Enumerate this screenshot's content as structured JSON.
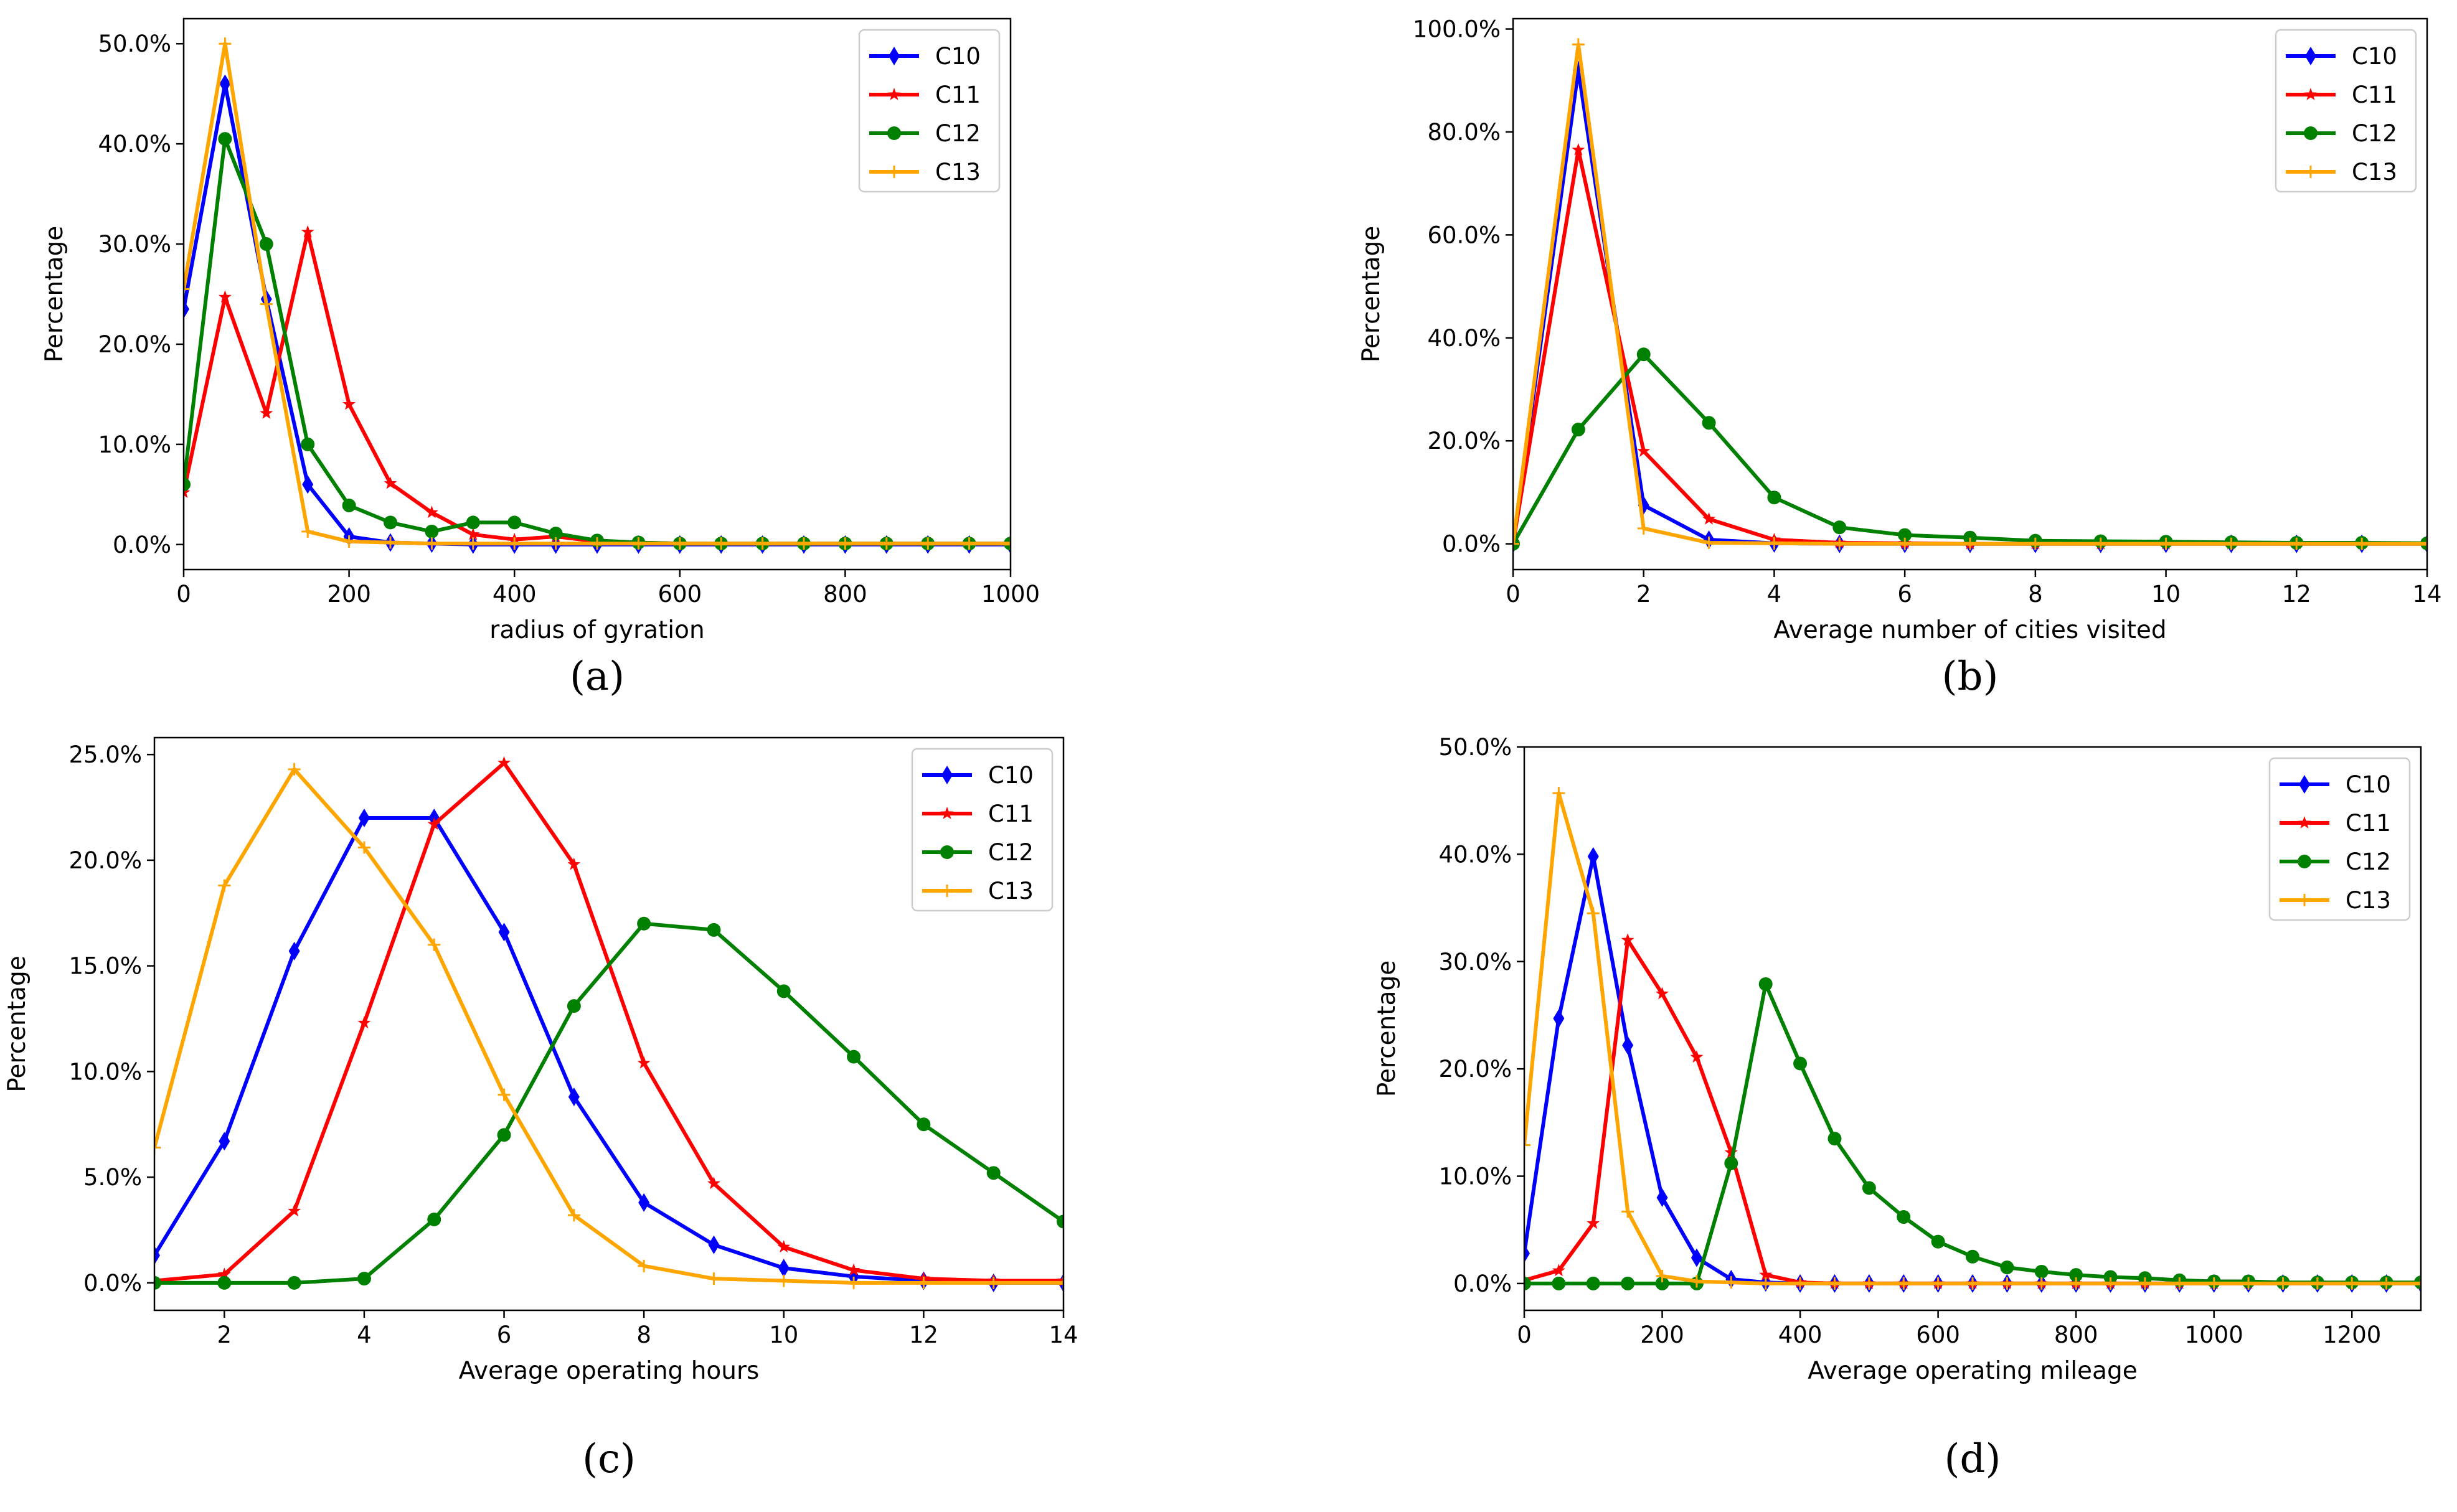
{
  "figure": {
    "panel_labels": [
      "(a)",
      "(b)",
      "(c)",
      "(d)"
    ]
  },
  "chart_data": [
    {
      "type": "line",
      "panel": "(a)",
      "title": "",
      "xlabel": "radius of gyration",
      "ylabel": "Percentage",
      "xlim": [
        0,
        1000
      ],
      "ylim": [
        -2.5,
        52.5
      ],
      "xticks": [
        0,
        200,
        400,
        600,
        800,
        1000
      ],
      "xtick_labels": [
        "0",
        "200",
        "400",
        "600",
        "800",
        "1000"
      ],
      "yticks": [
        0,
        10,
        20,
        30,
        40,
        50
      ],
      "ytick_labels": [
        "0.0%",
        "10.0%",
        "20.0%",
        "30.0%",
        "40.0%",
        "50.0%"
      ],
      "legend": "top-right",
      "grid": false,
      "series": [
        {
          "name": "C10",
          "color": "#0000ff",
          "marker": "diamond",
          "x": [
            0,
            50,
            100,
            150,
            200,
            250,
            300,
            350,
            400,
            450,
            500,
            550,
            600,
            650,
            700,
            750,
            800,
            850,
            900,
            950,
            1000
          ],
          "y": [
            23.5,
            46,
            24.5,
            6,
            0.8,
            0.2,
            0.1,
            0,
            0,
            0,
            0,
            0,
            0,
            0,
            0,
            0,
            0,
            0,
            0,
            0,
            0
          ]
        },
        {
          "name": "C11",
          "color": "#ff0000",
          "marker": "star",
          "x": [
            0,
            50,
            100,
            150,
            200,
            250,
            300,
            350,
            400,
            450,
            500,
            550,
            600,
            650,
            700,
            750,
            800,
            850,
            900,
            950,
            1000
          ],
          "y": [
            5.2,
            24.7,
            13.1,
            31.2,
            14,
            6.1,
            3.2,
            1,
            0.5,
            0.8,
            0.3,
            0.2,
            0.1,
            0.1,
            0.1,
            0.1,
            0.1,
            0.1,
            0.1,
            0.1,
            0.1
          ]
        },
        {
          "name": "C12",
          "color": "#008000",
          "marker": "circle",
          "x": [
            0,
            50,
            100,
            150,
            200,
            250,
            300,
            350,
            400,
            450,
            500,
            550,
            600,
            650,
            700,
            750,
            800,
            850,
            900,
            950,
            1000
          ],
          "y": [
            6,
            40.5,
            30,
            10,
            3.9,
            2.2,
            1.3,
            2.2,
            2.2,
            1.1,
            0.4,
            0.2,
            0.1,
            0.1,
            0.1,
            0.1,
            0.1,
            0.1,
            0.1,
            0.1,
            0.1
          ]
        },
        {
          "name": "C13",
          "color": "#ffa500",
          "marker": "plus",
          "x": [
            0,
            50,
            100,
            150,
            200,
            250,
            300,
            350,
            400,
            450,
            500,
            550,
            600,
            650,
            700,
            750,
            800,
            850,
            900,
            950,
            1000
          ],
          "y": [
            25.5,
            50,
            24,
            1.3,
            0.3,
            0.2,
            0.1,
            0.1,
            0.1,
            0.1,
            0.1,
            0.1,
            0.1,
            0.1,
            0.1,
            0.1,
            0.1,
            0.1,
            0.1,
            0.1,
            0.1
          ]
        }
      ]
    },
    {
      "type": "line",
      "panel": "(b)",
      "title": "",
      "xlabel": "Average number of cities visited",
      "ylabel": "Percentage",
      "xlim": [
        0,
        14
      ],
      "ylim": [
        -5,
        102
      ],
      "xticks": [
        0,
        2,
        4,
        6,
        8,
        10,
        12,
        14
      ],
      "xtick_labels": [
        "0",
        "2",
        "4",
        "6",
        "8",
        "10",
        "12",
        "14"
      ],
      "yticks": [
        0,
        20,
        40,
        60,
        80,
        100
      ],
      "ytick_labels": [
        "0.0%",
        "20.0%",
        "40.0%",
        "60.0%",
        "80.0%",
        "100.0%"
      ],
      "legend": "top-right",
      "grid": false,
      "series": [
        {
          "name": "C10",
          "color": "#0000ff",
          "marker": "diamond",
          "x": [
            0,
            1,
            2,
            3,
            4,
            5,
            6,
            7,
            8,
            9,
            10,
            11,
            12,
            13,
            14
          ],
          "y": [
            0,
            92,
            7.5,
            0.8,
            0.1,
            0,
            0,
            0,
            0,
            0,
            0,
            0,
            0,
            0,
            0
          ]
        },
        {
          "name": "C11",
          "color": "#ff0000",
          "marker": "star",
          "x": [
            0,
            1,
            2,
            3,
            4,
            5,
            6,
            7,
            8,
            9,
            10,
            11,
            12,
            13,
            14
          ],
          "y": [
            0,
            76.5,
            18,
            4.8,
            0.8,
            0.2,
            0.1,
            0,
            0,
            0,
            0,
            0,
            0,
            0,
            0
          ]
        },
        {
          "name": "C12",
          "color": "#008000",
          "marker": "circle",
          "x": [
            0,
            1,
            2,
            3,
            4,
            5,
            6,
            7,
            8,
            9,
            10,
            11,
            12,
            13,
            14
          ],
          "y": [
            0,
            22.2,
            36.8,
            23.5,
            9,
            3.2,
            1.7,
            1.2,
            0.6,
            0.5,
            0.4,
            0.3,
            0.2,
            0.2,
            0.1
          ]
        },
        {
          "name": "C13",
          "color": "#ffa500",
          "marker": "plus",
          "x": [
            0,
            1,
            2,
            3,
            4,
            5,
            6,
            7,
            8,
            9,
            10,
            11,
            12,
            13,
            14
          ],
          "y": [
            0,
            97,
            3,
            0.2,
            0.1,
            0,
            0,
            0,
            0,
            0,
            0,
            0,
            0,
            0,
            0
          ]
        }
      ]
    },
    {
      "type": "line",
      "panel": "(c)",
      "title": "",
      "xlabel": "Average operating hours",
      "ylabel": "Percentage",
      "xlim": [
        1,
        14
      ],
      "ylim": [
        -1.3,
        25.8
      ],
      "xticks": [
        2,
        4,
        6,
        8,
        10,
        12,
        14
      ],
      "xtick_labels": [
        "2",
        "4",
        "6",
        "8",
        "10",
        "12",
        "14"
      ],
      "yticks": [
        0,
        5,
        10,
        15,
        20,
        25
      ],
      "ytick_labels": [
        "0.0%",
        "5.0%",
        "10.0%",
        "15.0%",
        "20.0%",
        "25.0%"
      ],
      "legend": "top-right",
      "grid": false,
      "series": [
        {
          "name": "C10",
          "color": "#0000ff",
          "marker": "diamond",
          "x": [
            1,
            2,
            3,
            4,
            5,
            6,
            7,
            8,
            9,
            10,
            11,
            12,
            13,
            14
          ],
          "y": [
            1.3,
            6.7,
            15.7,
            22,
            22,
            16.6,
            8.8,
            3.8,
            1.8,
            0.7,
            0.3,
            0.1,
            0,
            0
          ]
        },
        {
          "name": "C11",
          "color": "#ff0000",
          "marker": "star",
          "x": [
            1,
            2,
            3,
            4,
            5,
            6,
            7,
            8,
            9,
            10,
            11,
            12,
            13,
            14
          ],
          "y": [
            0.1,
            0.4,
            3.4,
            12.3,
            21.7,
            24.6,
            19.8,
            10.4,
            4.7,
            1.7,
            0.6,
            0.2,
            0.1,
            0.1
          ]
        },
        {
          "name": "C12",
          "color": "#008000",
          "marker": "circle",
          "x": [
            1,
            2,
            3,
            4,
            5,
            6,
            7,
            8,
            9,
            10,
            11,
            12,
            13,
            14
          ],
          "y": [
            0,
            0,
            0,
            0.2,
            3,
            7,
            13.1,
            17,
            16.7,
            13.8,
            10.7,
            7.5,
            5.2,
            2.9
          ]
        },
        {
          "name": "C13",
          "color": "#ffa500",
          "marker": "plus",
          "x": [
            1,
            2,
            3,
            4,
            5,
            6,
            7,
            8,
            9,
            10,
            11,
            12,
            13,
            14
          ],
          "y": [
            6.4,
            18.8,
            24.3,
            20.6,
            16,
            8.9,
            3.2,
            0.8,
            0.2,
            0.1,
            0,
            0,
            0,
            0
          ]
        }
      ]
    },
    {
      "type": "line",
      "panel": "(d)",
      "title": "",
      "xlabel": "Average operating mileage",
      "ylabel": "Percentage",
      "xlim": [
        0,
        1300
      ],
      "ylim": [
        -2.5,
        50
      ],
      "xticks": [
        0,
        200,
        400,
        600,
        800,
        1000,
        1200
      ],
      "xtick_labels": [
        "0",
        "200",
        "400",
        "600",
        "800",
        "1000",
        "1200"
      ],
      "yticks": [
        0,
        10,
        20,
        30,
        40,
        50
      ],
      "ytick_labels": [
        "0.0%",
        "10.0%",
        "20.0%",
        "30.0%",
        "40.0%",
        "50.0%"
      ],
      "legend": "top-right",
      "grid": false,
      "series": [
        {
          "name": "C10",
          "color": "#0000ff",
          "marker": "diamond",
          "x": [
            0,
            50,
            100,
            150,
            200,
            250,
            300,
            350,
            400,
            450,
            500,
            550,
            600,
            650,
            700,
            750,
            800,
            850,
            900,
            950,
            1000,
            1050,
            1100,
            1150,
            1200,
            1250,
            1300
          ],
          "y": [
            2.8,
            24.7,
            39.8,
            22.2,
            8,
            2.4,
            0.4,
            0.1,
            0,
            0,
            0,
            0,
            0,
            0,
            0,
            0,
            0,
            0,
            0,
            0,
            0,
            0,
            0,
            0,
            0,
            0,
            0
          ]
        },
        {
          "name": "C11",
          "color": "#ff0000",
          "marker": "star",
          "x": [
            0,
            50,
            100,
            150,
            200,
            250,
            300,
            350,
            400,
            450,
            500,
            550,
            600,
            650,
            700,
            750,
            800,
            850,
            900,
            950,
            1000,
            1050,
            1100,
            1150,
            1200,
            1250,
            1300
          ],
          "y": [
            0.3,
            1.2,
            5.6,
            32,
            27,
            21.1,
            12.2,
            0.8,
            0.1,
            0,
            0,
            0,
            0,
            0,
            0,
            0,
            0,
            0,
            0,
            0,
            0,
            0,
            0,
            0,
            0,
            0,
            0
          ]
        },
        {
          "name": "C12",
          "color": "#008000",
          "marker": "circle",
          "x": [
            0,
            50,
            100,
            150,
            200,
            250,
            300,
            350,
            400,
            450,
            500,
            550,
            600,
            650,
            700,
            750,
            800,
            850,
            900,
            950,
            1000,
            1050,
            1100,
            1150,
            1200,
            1250,
            1300
          ],
          "y": [
            0,
            0,
            0,
            0,
            0,
            0,
            11.2,
            27.9,
            20.5,
            13.5,
            8.9,
            6.2,
            3.9,
            2.5,
            1.5,
            1.1,
            0.8,
            0.6,
            0.5,
            0.3,
            0.2,
            0.2,
            0.1,
            0.1,
            0.1,
            0.1,
            0.1
          ]
        },
        {
          "name": "C13",
          "color": "#ffa500",
          "marker": "plus",
          "x": [
            0,
            50,
            100,
            150,
            200,
            250,
            300,
            350,
            400,
            450,
            500,
            550,
            600,
            650,
            700,
            750,
            800,
            850,
            900,
            950,
            1000,
            1050,
            1100,
            1150,
            1200,
            1250,
            1300
          ],
          "y": [
            12.9,
            45.7,
            34.5,
            6.7,
            0.7,
            0.2,
            0.1,
            0,
            0,
            0,
            0,
            0,
            0,
            0,
            0,
            0,
            0,
            0,
            0,
            0,
            0,
            0,
            0,
            0,
            0,
            0,
            0
          ]
        }
      ]
    }
  ]
}
